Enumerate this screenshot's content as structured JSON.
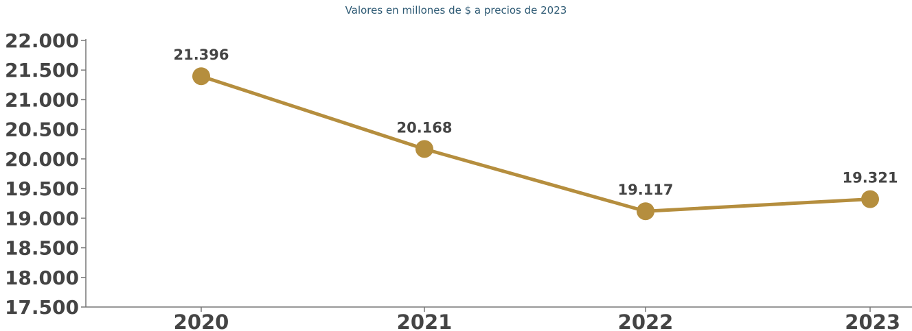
{
  "chart_data": {
    "type": "line",
    "subtitle": "Valores en millones de $ a precios de 2023",
    "categories": [
      "2020",
      "2021",
      "2022",
      "2023"
    ],
    "series": [
      {
        "values": [
          21396,
          20168,
          19117,
          19321
        ],
        "labels": [
          "21.396",
          "20.168",
          "19.117",
          "19.321"
        ],
        "color": "#b58e3e"
      }
    ],
    "ylim": [
      17500,
      22000
    ],
    "yticks": [
      17500,
      18000,
      18500,
      19000,
      19500,
      20000,
      20500,
      21000,
      21500,
      22000
    ],
    "ytick_labels": [
      "17.500",
      "18.000",
      "18.500",
      "19.000",
      "19.500",
      "20.000",
      "20.500",
      "21.000",
      "21.500",
      "22.000"
    ],
    "grid": false,
    "legend": "none"
  }
}
